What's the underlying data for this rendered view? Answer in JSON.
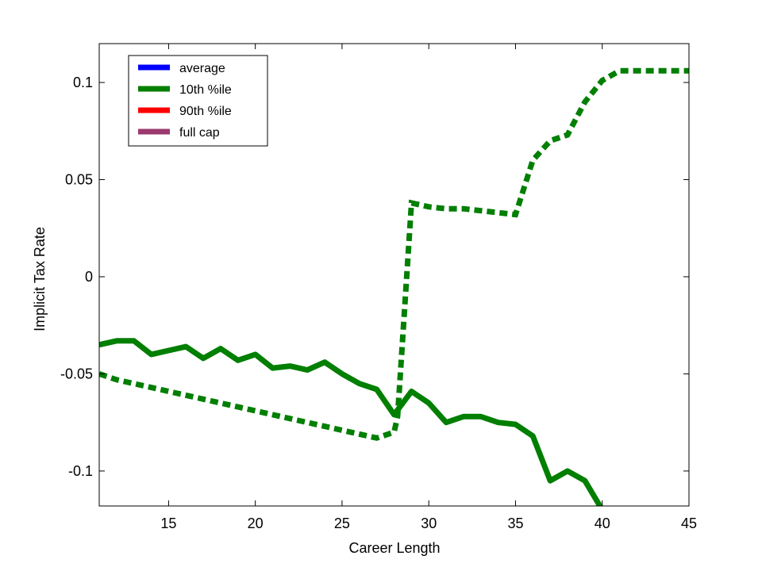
{
  "chart_data": {
    "type": "line",
    "title": "",
    "xlabel": "Career Length",
    "ylabel": "Implicit Tax Rate",
    "xlim": [
      11,
      45
    ],
    "ylim": [
      -0.118,
      0.12
    ],
    "xticks": [
      15,
      20,
      25,
      30,
      35,
      40,
      45
    ],
    "yticks": [
      -0.1,
      -0.05,
      0,
      0.05,
      0.1
    ],
    "ytick_labels": [
      "-0.1",
      "-0.05",
      "0",
      "0.05",
      "0.1"
    ],
    "grid": false,
    "legend_position": "top-left",
    "legend": [
      {
        "label": "average",
        "color": "#0000ff"
      },
      {
        "label": "10th %ile",
        "color": "#007f00"
      },
      {
        "label": "90th %ile",
        "color": "#ff0000"
      },
      {
        "label": "full cap",
        "color": "#9b3a6e"
      }
    ],
    "series": [
      {
        "style": "solid",
        "color": "#007f00",
        "x": [
          11,
          12,
          13,
          14,
          15,
          16,
          17,
          18,
          19,
          20,
          21,
          22,
          23,
          24,
          25,
          26,
          27,
          28,
          29,
          30,
          31,
          32,
          33,
          34,
          35,
          36,
          37,
          38,
          39,
          40
        ],
        "y": [
          -0.035,
          -0.033,
          -0.033,
          -0.04,
          -0.038,
          -0.036,
          -0.042,
          -0.037,
          -0.043,
          -0.04,
          -0.047,
          -0.046,
          -0.048,
          -0.044,
          -0.05,
          -0.055,
          -0.058,
          -0.071,
          -0.059,
          -0.065,
          -0.075,
          -0.072,
          -0.072,
          -0.075,
          -0.076,
          -0.082,
          -0.105,
          -0.1,
          -0.105,
          -0.12
        ]
      },
      {
        "style": "dotted",
        "color": "#007f00",
        "x": [
          11,
          12,
          13,
          14,
          15,
          16,
          17,
          18,
          19,
          20,
          21,
          22,
          23,
          24,
          25,
          26,
          27,
          28,
          28.2,
          29,
          30,
          31,
          32,
          33,
          34,
          35,
          36,
          37,
          38,
          39,
          40,
          41,
          42,
          43,
          44,
          45
        ],
        "y": [
          -0.05,
          -0.053,
          -0.055,
          -0.057,
          -0.059,
          -0.061,
          -0.063,
          -0.065,
          -0.067,
          -0.069,
          -0.071,
          -0.073,
          -0.075,
          -0.077,
          -0.079,
          -0.081,
          -0.083,
          -0.08,
          -0.072,
          0.038,
          0.036,
          0.035,
          0.035,
          0.034,
          0.033,
          0.032,
          0.06,
          0.07,
          0.073,
          0.09,
          0.101,
          0.106,
          0.106,
          0.106,
          0.106,
          0.106
        ]
      }
    ]
  }
}
